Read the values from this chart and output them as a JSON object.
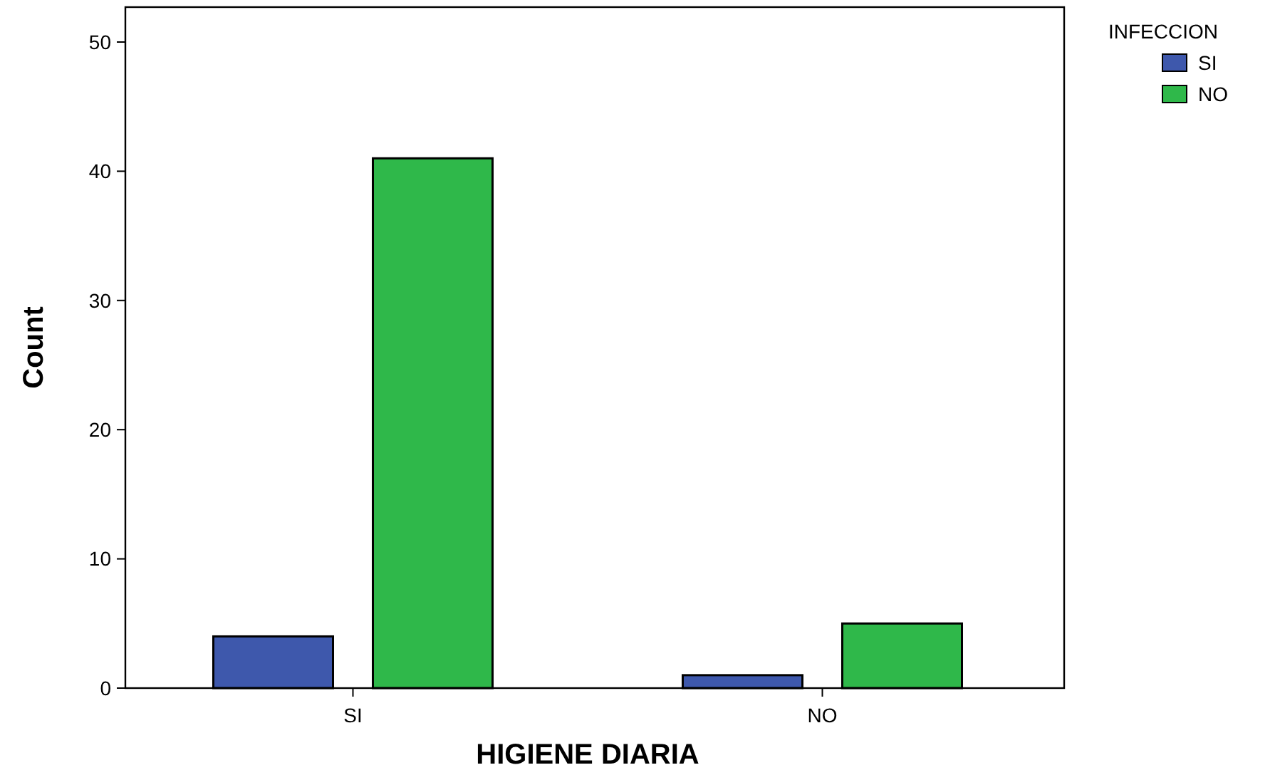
{
  "chart_data": {
    "type": "bar",
    "xlabel": "HIGIENE DIARIA",
    "ylabel": "Count",
    "legend_title": "INFECCION",
    "categories": [
      "SI",
      "NO"
    ],
    "series": [
      {
        "name": "SI",
        "color": "#3e58ac",
        "values": [
          4,
          1
        ]
      },
      {
        "name": "NO",
        "color": "#2fb84a",
        "values": [
          41,
          5
        ]
      }
    ],
    "ylim": [
      0,
      52.7
    ],
    "yticks": [
      0,
      10,
      20,
      30,
      40,
      50
    ],
    "grid": false,
    "legend": "top right"
  }
}
